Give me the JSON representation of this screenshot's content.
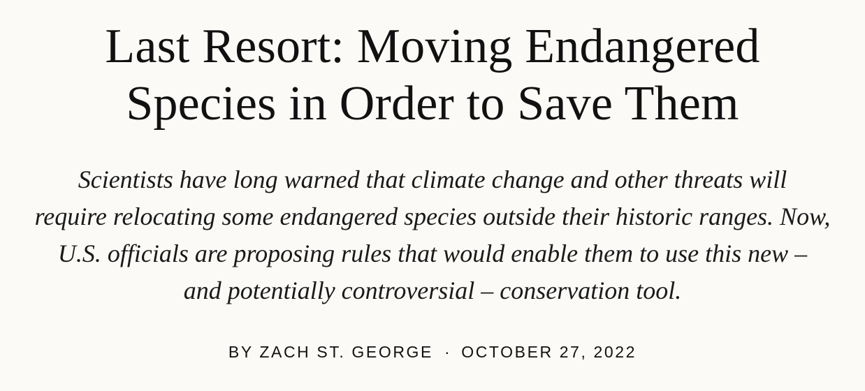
{
  "article": {
    "headline_lines": [
      "Last Resort: Moving Endangered",
      "Species in Order to Save Them"
    ],
    "dek_lines": [
      "Scientists have long warned that climate change and other threats will",
      "require relocating some endangered species outside their historic ranges. Now,",
      "U.S. officials are proposing rules that would enable them to use this new –",
      "and potentially controversial – conservation tool."
    ],
    "byline": {
      "author": "BY ZACH ST. GEORGE",
      "separator": "·",
      "date": "OCTOBER 27, 2022"
    }
  }
}
